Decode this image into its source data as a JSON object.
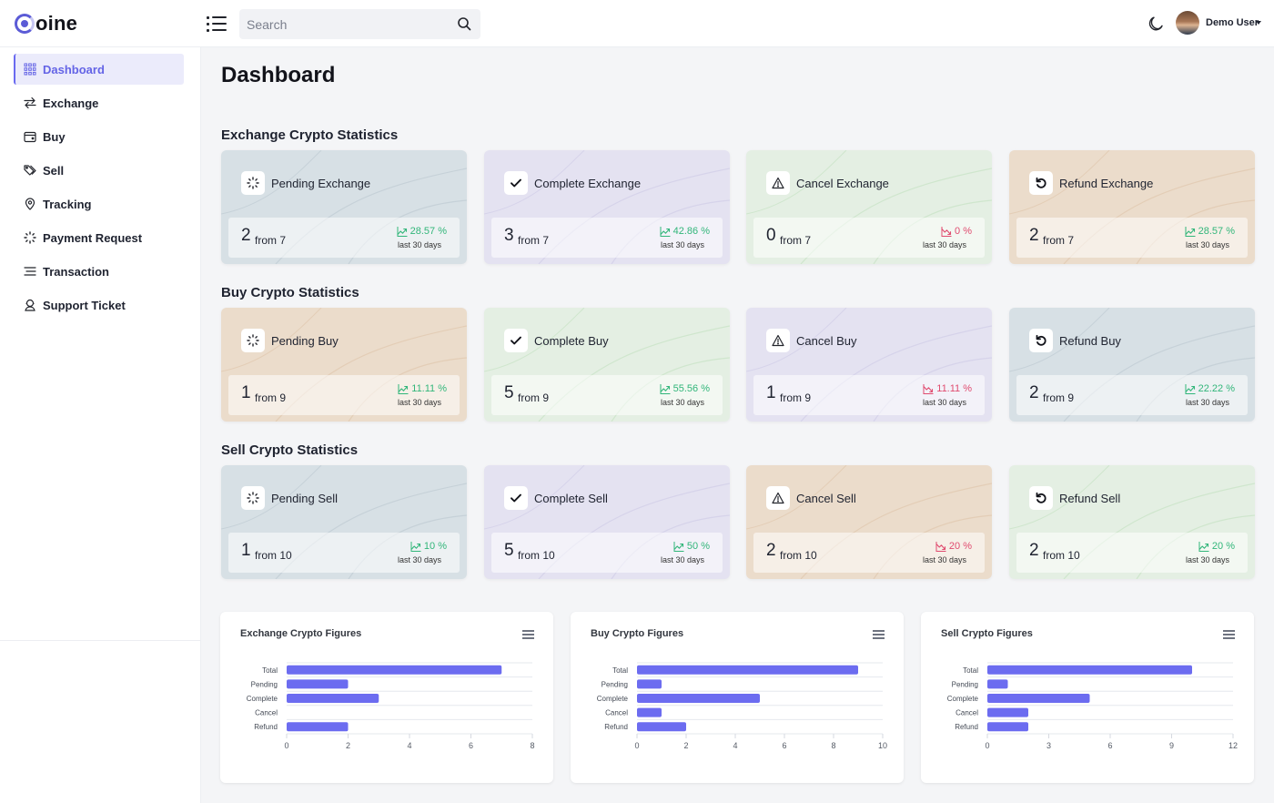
{
  "app": {
    "logo_letter": "C",
    "logo_rest": "oine"
  },
  "header": {
    "search_placeholder": "Search",
    "user_name": "Demo User"
  },
  "sidebar": {
    "items": [
      {
        "label": "Dashboard",
        "icon": "grid-icon",
        "active": true
      },
      {
        "label": "Exchange",
        "icon": "arrows-exchange-icon"
      },
      {
        "label": "Buy",
        "icon": "wallet-icon"
      },
      {
        "label": "Sell",
        "icon": "tags-icon"
      },
      {
        "label": "Tracking",
        "icon": "map-pin-icon"
      },
      {
        "label": "Payment Request",
        "icon": "loader-icon"
      },
      {
        "label": "Transaction",
        "icon": "lines-icon"
      },
      {
        "label": "Support Ticket",
        "icon": "support-icon"
      }
    ]
  },
  "main": {
    "title": "Dashboard",
    "sections": [
      {
        "title": "Exchange Crypto Statistics",
        "cards": [
          {
            "title": "Pending Exchange",
            "icon": "loader-icon",
            "value": "2",
            "from": "from 7",
            "pct": "28.57 %",
            "trend": "up",
            "period": "last 30 days",
            "bg": "blue"
          },
          {
            "title": "Complete Exchange",
            "icon": "check-icon",
            "value": "3",
            "from": "from 7",
            "pct": "42.86 %",
            "trend": "up",
            "period": "last 30 days",
            "bg": "purple"
          },
          {
            "title": "Cancel Exchange",
            "icon": "warning-icon",
            "value": "0",
            "from": "from 7",
            "pct": "0 %",
            "trend": "down",
            "period": "last 30 days",
            "bg": "green"
          },
          {
            "title": "Refund Exchange",
            "icon": "refund-icon",
            "value": "2",
            "from": "from 7",
            "pct": "28.57 %",
            "trend": "up",
            "period": "last 30 days",
            "bg": "orange"
          }
        ]
      },
      {
        "title": "Buy Crypto Statistics",
        "cards": [
          {
            "title": "Pending Buy",
            "icon": "loader-icon",
            "value": "1",
            "from": "from 9",
            "pct": "11.11 %",
            "trend": "up",
            "period": "last 30 days",
            "bg": "orange"
          },
          {
            "title": "Complete Buy",
            "icon": "check-icon",
            "value": "5",
            "from": "from 9",
            "pct": "55.56 %",
            "trend": "up",
            "period": "last 30 days",
            "bg": "green"
          },
          {
            "title": "Cancel Buy",
            "icon": "warning-icon",
            "value": "1",
            "from": "from 9",
            "pct": "11.11 %",
            "trend": "down",
            "period": "last 30 days",
            "bg": "purple"
          },
          {
            "title": "Refund Buy",
            "icon": "refund-icon",
            "value": "2",
            "from": "from 9",
            "pct": "22.22 %",
            "trend": "up",
            "period": "last 30 days",
            "bg": "blue"
          }
        ]
      },
      {
        "title": "Sell Crypto Statistics",
        "cards": [
          {
            "title": "Pending Sell",
            "icon": "loader-icon",
            "value": "1",
            "from": "from 10",
            "pct": "10 %",
            "trend": "up",
            "period": "last 30 days",
            "bg": "blue"
          },
          {
            "title": "Complete Sell",
            "icon": "check-icon",
            "value": "5",
            "from": "from 10",
            "pct": "50 %",
            "trend": "up",
            "period": "last 30 days",
            "bg": "purple"
          },
          {
            "title": "Cancel Sell",
            "icon": "warning-icon",
            "value": "2",
            "from": "from 10",
            "pct": "20 %",
            "trend": "down",
            "period": "last 30 days",
            "bg": "orange"
          },
          {
            "title": "Refund Sell",
            "icon": "refund-icon",
            "value": "2",
            "from": "from 10",
            "pct": "20 %",
            "trend": "up",
            "period": "last 30 days",
            "bg": "green"
          }
        ]
      }
    ]
  },
  "colors": {
    "accent": "#6a6af0",
    "bar": "#6c6cf0",
    "up": "#32b67a",
    "down": "#e04b6f"
  },
  "chart_data": [
    {
      "type": "bar",
      "orientation": "horizontal",
      "title": "Exchange Crypto Figures",
      "categories": [
        "Total",
        "Pending",
        "Complete",
        "Cancel",
        "Refund"
      ],
      "values": [
        7,
        2,
        3,
        0,
        2
      ],
      "xlim": [
        0,
        8
      ],
      "xticks": [
        0,
        2,
        4,
        6,
        8
      ],
      "grid": true,
      "xlabel": "",
      "ylabel": ""
    },
    {
      "type": "bar",
      "orientation": "horizontal",
      "title": "Buy Crypto Figures",
      "categories": [
        "Total",
        "Pending",
        "Complete",
        "Cancel",
        "Refund"
      ],
      "values": [
        9,
        1,
        5,
        1,
        2
      ],
      "xlim": [
        0,
        10
      ],
      "xticks": [
        0,
        2,
        4,
        6,
        8,
        10
      ],
      "grid": true,
      "xlabel": "",
      "ylabel": ""
    },
    {
      "type": "bar",
      "orientation": "horizontal",
      "title": "Sell Crypto Figures",
      "categories": [
        "Total",
        "Pending",
        "Complete",
        "Cancel",
        "Refund"
      ],
      "values": [
        10,
        1,
        5,
        2,
        2
      ],
      "xlim": [
        0,
        12
      ],
      "xticks": [
        0,
        3,
        6,
        9,
        12
      ],
      "grid": true,
      "xlabel": "",
      "ylabel": ""
    }
  ]
}
